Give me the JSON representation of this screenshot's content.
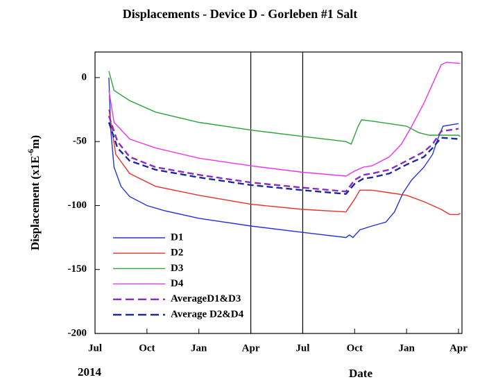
{
  "chart_data": {
    "type": "line",
    "title": "Displacements - Device D - Gorleben #1 Salt",
    "y_label": {
      "main": "Displacement (x1E",
      "sup": "-6",
      "end": "m)"
    },
    "x_label": "Date",
    "x_year": "2014",
    "xlim": [
      0,
      21.2
    ],
    "ylim": [
      -200,
      20
    ],
    "xticks": [
      {
        "value": 0,
        "label": "Jul"
      },
      {
        "value": 3,
        "label": "Oct"
      },
      {
        "value": 6,
        "label": "Jan"
      },
      {
        "value": 9,
        "label": "Apr"
      },
      {
        "value": 12,
        "label": "Jul"
      },
      {
        "value": 15,
        "label": "Oct"
      },
      {
        "value": 18,
        "label": "Jan"
      },
      {
        "value": 21,
        "label": "Apr"
      }
    ],
    "yticks": [
      -200,
      -150,
      -100,
      -50,
      0
    ],
    "vlines": [
      9,
      12
    ],
    "legend": "lower left",
    "series": [
      {
        "name": "D1",
        "color": "#2233dd",
        "dash": false,
        "x": [
          0.8,
          0.9,
          1.1,
          1.5,
          2,
          3,
          4,
          6,
          9,
          12,
          14.5,
          14.7,
          14.9,
          15.3,
          16,
          16.8,
          17.3,
          17.8,
          18.3,
          19,
          19.5,
          19.8,
          20.1,
          21
        ],
        "values": [
          0,
          -40,
          -70,
          -85,
          -93,
          -100,
          -104,
          -110,
          -116,
          -121,
          -125,
          -123,
          -125,
          -119,
          -116,
          -113,
          -105,
          -90,
          -80,
          -70,
          -60,
          -48,
          -38,
          -36
        ]
      },
      {
        "name": "D2",
        "color": "#e8302a",
        "dash": false,
        "x": [
          0.8,
          1.2,
          2,
          3.5,
          6,
          9,
          12,
          14.5,
          15,
          15.3,
          16,
          17,
          18,
          19,
          20,
          20.5,
          21,
          21.1
        ],
        "values": [
          -25,
          -60,
          -75,
          -85,
          -92,
          -99,
          -103,
          -105,
          -95,
          -88,
          -88,
          -90,
          -92,
          -97,
          -103,
          -107,
          -107,
          -106
        ]
      },
      {
        "name": "D3",
        "color": "#2aa33a",
        "dash": false,
        "x": [
          0.8,
          1.1,
          2,
          3.5,
          6,
          9,
          12,
          14.5,
          14.8,
          15.2,
          15.4,
          16,
          17,
          18,
          18.7,
          19.3,
          20.5,
          21,
          21.1
        ],
        "values": [
          5,
          -10,
          -18,
          -27,
          -35,
          -41,
          -46,
          -50,
          -52,
          -38,
          -33,
          -34,
          -36,
          -38,
          -43,
          -45,
          -45,
          -45,
          -46
        ]
      },
      {
        "name": "D4",
        "color": "#ee33ee",
        "dash": false,
        "x": [
          0.8,
          1.1,
          2,
          3.5,
          6,
          9,
          12,
          14.5,
          15,
          15.5,
          16,
          17,
          17.7,
          18.3,
          19,
          19.5,
          20,
          20.3,
          21.1
        ],
        "values": [
          -10,
          -35,
          -48,
          -55,
          -63,
          -69,
          -74,
          -77,
          -73,
          -70,
          -69,
          -62,
          -52,
          -38,
          -20,
          -5,
          10,
          12,
          11
        ]
      },
      {
        "name": "AverageD1&D3",
        "color": "#8a2bc8",
        "dash": true,
        "x": [
          0.8,
          1.3,
          2,
          3.5,
          6,
          9,
          12,
          14.5,
          15,
          15.5,
          16,
          17,
          18,
          19,
          19.5,
          20,
          21
        ],
        "values": [
          -30,
          -50,
          -62,
          -70,
          -76,
          -82,
          -86,
          -89,
          -80,
          -76,
          -75,
          -72,
          -65,
          -58,
          -52,
          -42,
          -40
        ]
      },
      {
        "name": "Average D2&D4",
        "color": "#1a2a9a",
        "dash": true,
        "x": [
          0.8,
          1.3,
          2,
          3.5,
          6,
          9,
          12,
          14.5,
          15,
          15.5,
          16,
          17,
          18,
          19,
          19.5,
          20,
          21
        ],
        "values": [
          -35,
          -55,
          -65,
          -72,
          -78,
          -84,
          -88,
          -91,
          -83,
          -79,
          -78,
          -75,
          -68,
          -62,
          -55,
          -47,
          -48
        ]
      }
    ]
  }
}
